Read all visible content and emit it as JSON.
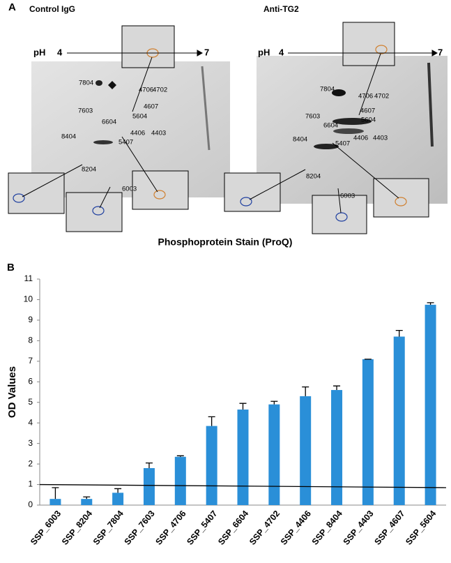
{
  "panel_a": {
    "label": "A",
    "caption": "Phosphoprotein Stain (ProQ)",
    "gels": [
      {
        "title": "Control IgG",
        "ph_label": "pH",
        "ph_start": "4",
        "ph_end": "7",
        "spots": [
          "7804",
          "4706",
          "4702",
          "4607",
          "7603",
          "5604",
          "6604",
          "4406",
          "4403",
          "8404",
          "5407",
          "8204",
          "6003"
        ]
      },
      {
        "title": "Anti-TG2",
        "ph_label": "pH",
        "ph_start": "4",
        "ph_end": "7",
        "spots": [
          "7804",
          "4706",
          "4702",
          "4607",
          "7603",
          "5604",
          "6604",
          "4406",
          "4403",
          "8404",
          "5407",
          "8204",
          "6003"
        ]
      }
    ]
  },
  "chart_data": {
    "type": "bar",
    "panel_label": "B",
    "y_label": "OD Values",
    "categories": [
      "SSP_6003",
      "SSP_8204",
      "SSP_7804",
      "SSP_7603",
      "SSP_4706",
      "SSP_5407",
      "SSP_6604",
      "SSP_4702",
      "SSP_4406",
      "SSP_8404",
      "SSP_4403",
      "SSP_4607",
      "SSP_5604"
    ],
    "values": [
      0.3,
      0.3,
      0.6,
      1.8,
      2.35,
      3.85,
      4.65,
      4.9,
      5.3,
      5.6,
      7.1,
      8.2,
      9.75
    ],
    "errors": [
      0.55,
      0.1,
      0.2,
      0.25,
      0.05,
      0.45,
      0.3,
      0.15,
      0.45,
      0.2,
      0,
      0.3,
      0.1
    ],
    "color": "#2a8fd8",
    "threshold_line": [
      1,
      0.85
    ],
    "ylim": [
      0,
      11
    ],
    "yticks": [
      0,
      1,
      2,
      3,
      4,
      5,
      6,
      7,
      8,
      9,
      10,
      11
    ],
    "grid": false
  }
}
